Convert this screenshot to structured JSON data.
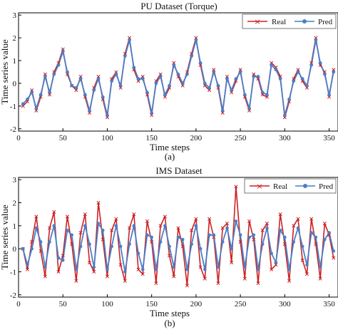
{
  "panels": [
    {
      "id": "a",
      "title": "PU Dataset (Torque)",
      "xlabel": "Time steps",
      "ylabel": "Time series value",
      "caption": "(a)",
      "xticks": [
        0,
        50,
        100,
        150,
        200,
        250,
        300,
        350
      ],
      "yticks": [
        -2,
        -1,
        0,
        1,
        2,
        3
      ],
      "xlim": [
        0,
        360
      ],
      "ylim": [
        -2.1,
        3.1
      ],
      "legend": {
        "real": "Real",
        "pred": "Pred",
        "position": "top-right"
      }
    },
    {
      "id": "b",
      "title": "IMS Dataset",
      "xlabel": "Time steps",
      "ylabel": "Time series value",
      "caption": "(b)",
      "xticks": [
        0,
        50,
        100,
        150,
        200,
        250,
        300,
        350
      ],
      "yticks": [
        -2,
        -1,
        0,
        1,
        2,
        3
      ],
      "xlim": [
        0,
        360
      ],
      "ylim": [
        -2.1,
        3.1
      ],
      "legend": {
        "real": "Real",
        "pred": "Pred",
        "position": "top-right"
      }
    }
  ],
  "colors": {
    "real": "#cc2222",
    "pred": "#4a7fc8"
  },
  "chart_data": [
    {
      "type": "line",
      "panel": "a",
      "x": [
        5,
        10,
        15,
        20,
        25,
        30,
        35,
        40,
        45,
        50,
        55,
        60,
        65,
        70,
        75,
        80,
        85,
        90,
        95,
        100,
        105,
        110,
        115,
        120,
        125,
        130,
        135,
        140,
        145,
        150,
        155,
        160,
        165,
        170,
        175,
        180,
        185,
        190,
        195,
        200,
        205,
        210,
        215,
        220,
        225,
        230,
        235,
        240,
        245,
        250,
        255,
        260,
        265,
        270,
        275,
        280,
        285,
        290,
        295,
        300,
        305,
        310,
        315,
        320,
        325,
        330,
        335,
        340,
        345,
        350,
        355
      ],
      "series": [
        {
          "name": "Real",
          "values": [
            -1.0,
            -0.8,
            -0.3,
            -1.2,
            -0.6,
            0.4,
            -0.5,
            0.5,
            0.9,
            1.5,
            0.4,
            -0.1,
            -0.3,
            0.3,
            -0.6,
            -1.3,
            -0.2,
            0.3,
            -0.7,
            -1.5,
            0.2,
            0.5,
            -0.2,
            1.3,
            2.0,
            0.6,
            0.1,
            0.3,
            -0.5,
            -1.4,
            0.1,
            0.4,
            -0.6,
            -0.2,
            0.9,
            0.3,
            -0.1,
            0.5,
            1.3,
            2.0,
            0.8,
            -0.1,
            -0.3,
            0.6,
            -0.2,
            -1.3,
            0.3,
            -0.4,
            0.1,
            0.6,
            -0.6,
            -1.2,
            0.4,
            0.2,
            -0.5,
            -0.6,
            0.9,
            0.7,
            0.3,
            -1.5,
            -0.8,
            0.2,
            0.6,
            0.1,
            -0.2,
            0.9,
            2.0,
            0.8,
            0.5,
            -0.6,
            0.6
          ]
        },
        {
          "name": "Pred",
          "values": [
            -0.9,
            -0.7,
            -0.4,
            -1.1,
            -0.5,
            0.3,
            -0.4,
            0.4,
            0.8,
            1.4,
            0.5,
            -0.1,
            -0.2,
            0.2,
            -0.5,
            -1.2,
            -0.3,
            0.2,
            -0.6,
            -1.4,
            0.1,
            0.4,
            -0.1,
            1.2,
            1.9,
            0.7,
            0.2,
            0.2,
            -0.4,
            -1.3,
            0.0,
            0.3,
            -0.5,
            -0.1,
            0.8,
            0.4,
            0.0,
            0.4,
            1.2,
            1.9,
            0.9,
            0.0,
            -0.2,
            0.5,
            -0.1,
            -1.2,
            0.2,
            -0.3,
            0.2,
            0.5,
            -0.5,
            -1.1,
            0.3,
            0.3,
            -0.4,
            -0.5,
            0.8,
            0.6,
            0.2,
            -1.4,
            -0.7,
            0.1,
            0.5,
            0.2,
            -0.1,
            0.8,
            1.9,
            0.9,
            0.4,
            -0.5,
            0.5
          ]
        }
      ],
      "title": "PU Dataset (Torque)",
      "xlabel": "Time steps",
      "ylabel": "Time series value",
      "xlim": [
        0,
        360
      ],
      "ylim": [
        -2.1,
        3.1
      ],
      "legend": "top-right",
      "grid": false
    },
    {
      "type": "line",
      "panel": "b",
      "x": [
        5,
        10,
        15,
        20,
        25,
        30,
        35,
        40,
        45,
        50,
        55,
        60,
        65,
        70,
        75,
        80,
        85,
        90,
        95,
        100,
        105,
        110,
        115,
        120,
        125,
        130,
        135,
        140,
        145,
        150,
        155,
        160,
        165,
        170,
        175,
        180,
        185,
        190,
        195,
        200,
        205,
        210,
        215,
        220,
        225,
        230,
        235,
        240,
        245,
        250,
        255,
        260,
        265,
        270,
        275,
        280,
        285,
        290,
        295,
        300,
        305,
        310,
        315,
        320,
        325,
        330,
        335,
        340,
        345,
        350,
        355
      ],
      "series": [
        {
          "name": "Real",
          "values": [
            0.0,
            -0.9,
            0.3,
            1.4,
            -0.1,
            -1.2,
            0.9,
            1.6,
            -1.0,
            -0.3,
            1.4,
            0.2,
            -1.4,
            0.7,
            1.5,
            -0.6,
            -1.0,
            2.0,
            0.4,
            -1.2,
            0.8,
            1.3,
            -0.7,
            -1.4,
            0.9,
            1.5,
            -0.9,
            -1.1,
            1.2,
            0.3,
            -1.5,
            1.0,
            1.4,
            -0.3,
            -1.2,
            0.9,
            0.1,
            -1.6,
            0.8,
            1.3,
            -0.8,
            -1.3,
            1.3,
            0.5,
            -1.5,
            0.9,
            1.1,
            -0.6,
            2.7,
            0.3,
            -1.3,
            1.2,
            0.4,
            -1.5,
            0.8,
            1.1,
            -0.9,
            -0.7,
            1.5,
            0.2,
            -1.4,
            1.0,
            1.3,
            -0.5,
            -1.1,
            1.3,
            0.2,
            -1.3,
            1.1,
            0.6,
            -0.4
          ]
        },
        {
          "name": "Pred",
          "values": [
            0.0,
            -0.7,
            0.0,
            0.9,
            0.3,
            -0.8,
            0.3,
            1.0,
            -0.4,
            -0.5,
            0.8,
            0.6,
            -0.9,
            0.1,
            1.0,
            0.2,
            -0.8,
            1.1,
            0.8,
            -0.9,
            0.1,
            1.0,
            0.1,
            -1.0,
            0.2,
            1.0,
            -0.2,
            -0.9,
            0.6,
            0.5,
            -0.9,
            0.3,
            1.0,
            0.1,
            -0.8,
            0.5,
            0.4,
            -0.9,
            0.2,
            1.0,
            0.0,
            -0.9,
            0.6,
            0.6,
            -0.8,
            0.3,
            0.9,
            0.0,
            1.2,
            0.6,
            -0.8,
            0.5,
            0.6,
            -0.9,
            0.2,
            0.9,
            -0.2,
            -0.6,
            0.8,
            0.5,
            -0.9,
            0.3,
            0.9,
            0.1,
            -0.7,
            0.7,
            0.5,
            -0.8,
            0.4,
            0.7,
            -0.1
          ]
        }
      ],
      "title": "IMS Dataset",
      "xlabel": "Time steps",
      "ylabel": "Time series value",
      "xlim": [
        0,
        360
      ],
      "ylim": [
        -2.1,
        3.1
      ],
      "legend": "top-right",
      "grid": false
    }
  ]
}
